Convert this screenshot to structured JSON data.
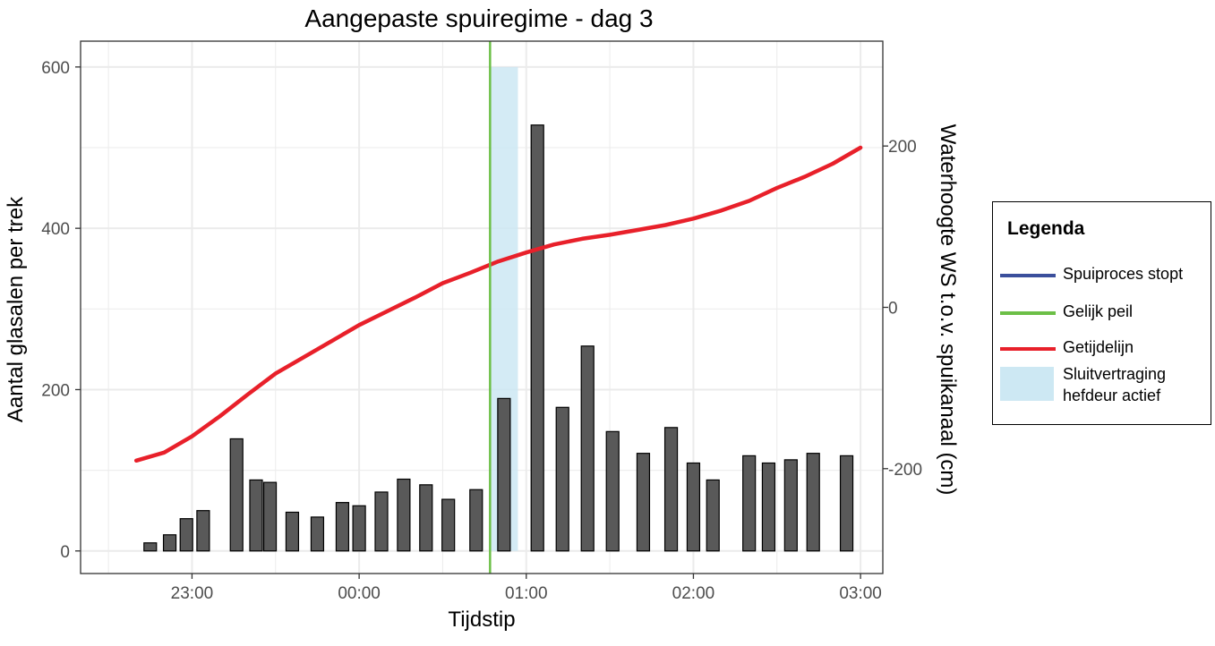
{
  "colors": {
    "panel_grid": "#ebebeb",
    "bar_fill": "#595959",
    "bar_stroke": "#000000",
    "tide_line": "#e8202a",
    "equal_level": "#6cbf47",
    "stop_line": "#3b4f9c",
    "shade": "#cde8f3"
  },
  "chart_data": {
    "type": "bar",
    "title": "Aangepaste spuiregime - dag 3",
    "xlabel": "Tijdstip",
    "ylabel": "Aantal glasalen per trek",
    "y2label": "Waterhoogte WS t.o.v. spuikanaal (cm)",
    "x_ticks": [
      "23:00",
      "00:00",
      "01:00",
      "02:00",
      "03:00"
    ],
    "y_ticks": [
      0,
      200,
      400,
      600
    ],
    "y2_ticks": [
      -200,
      0,
      200
    ],
    "xlim": [
      "22:20",
      "03:08"
    ],
    "ylim": [
      -28,
      632
    ],
    "y2lim": [
      -330,
      330
    ],
    "grid": true,
    "bars": [
      {
        "time": "22:45",
        "value": 10
      },
      {
        "time": "22:52",
        "value": 20
      },
      {
        "time": "22:58",
        "value": 40
      },
      {
        "time": "23:04",
        "value": 50
      },
      {
        "time": "23:16",
        "value": 139
      },
      {
        "time": "23:23",
        "value": 88
      },
      {
        "time": "23:28",
        "value": 85
      },
      {
        "time": "23:36",
        "value": 48
      },
      {
        "time": "23:45",
        "value": 42
      },
      {
        "time": "23:54",
        "value": 60
      },
      {
        "time": "00:00",
        "value": 56
      },
      {
        "time": "00:08",
        "value": 73
      },
      {
        "time": "00:16",
        "value": 89
      },
      {
        "time": "00:24",
        "value": 82
      },
      {
        "time": "00:32",
        "value": 64
      },
      {
        "time": "00:42",
        "value": 76
      },
      {
        "time": "00:52",
        "value": 189
      },
      {
        "time": "01:04",
        "value": 528
      },
      {
        "time": "01:13",
        "value": 178
      },
      {
        "time": "01:22",
        "value": 254
      },
      {
        "time": "01:31",
        "value": 148
      },
      {
        "time": "01:42",
        "value": 121
      },
      {
        "time": "01:52",
        "value": 153
      },
      {
        "time": "02:00",
        "value": 109
      },
      {
        "time": "02:07",
        "value": 88
      },
      {
        "time": "02:20",
        "value": 118
      },
      {
        "time": "02:27",
        "value": 109
      },
      {
        "time": "02:35",
        "value": 113
      },
      {
        "time": "02:43",
        "value": 121
      },
      {
        "time": "02:55",
        "value": 118
      }
    ],
    "tide_line": [
      {
        "time": "22:40",
        "value": -190
      },
      {
        "time": "22:50",
        "value": -180
      },
      {
        "time": "23:00",
        "value": -160
      },
      {
        "time": "23:10",
        "value": -135
      },
      {
        "time": "23:20",
        "value": -108
      },
      {
        "time": "23:30",
        "value": -82
      },
      {
        "time": "23:40",
        "value": -62
      },
      {
        "time": "23:50",
        "value": -42
      },
      {
        "time": "00:00",
        "value": -22
      },
      {
        "time": "00:10",
        "value": -5
      },
      {
        "time": "00:20",
        "value": 12
      },
      {
        "time": "00:30",
        "value": 30
      },
      {
        "time": "00:40",
        "value": 43
      },
      {
        "time": "00:50",
        "value": 57
      },
      {
        "time": "01:00",
        "value": 68
      },
      {
        "time": "01:10",
        "value": 78
      },
      {
        "time": "01:20",
        "value": 85
      },
      {
        "time": "01:30",
        "value": 90
      },
      {
        "time": "01:40",
        "value": 96
      },
      {
        "time": "01:50",
        "value": 102
      },
      {
        "time": "02:00",
        "value": 110
      },
      {
        "time": "02:10",
        "value": 120
      },
      {
        "time": "02:20",
        "value": 132
      },
      {
        "time": "02:30",
        "value": 148
      },
      {
        "time": "02:40",
        "value": 162
      },
      {
        "time": "02:50",
        "value": 178
      },
      {
        "time": "03:00",
        "value": 198
      }
    ],
    "equal_level_time": "00:47",
    "shaded_interval": {
      "start": "00:47",
      "end": "00:57",
      "top": 600
    },
    "legend": {
      "title": "Legenda",
      "placement": "right",
      "items": [
        {
          "label": "Spuiproces stopt",
          "kind": "line",
          "color": "#3b4f9c"
        },
        {
          "label": "Gelijk peil",
          "kind": "line",
          "color": "#6cbf47"
        },
        {
          "label": "Getijdelijn",
          "kind": "line",
          "color": "#e8202a"
        },
        {
          "label": "Sluitvertraging\nhefdeur actief",
          "kind": "rect",
          "color": "#cde8f3"
        }
      ]
    }
  }
}
